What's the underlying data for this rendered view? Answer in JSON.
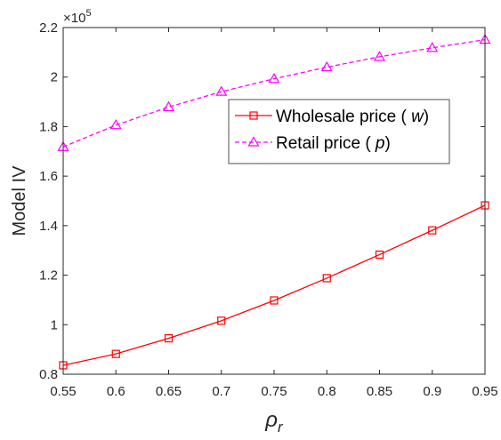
{
  "chart_data": {
    "type": "line",
    "ylabel": "Model IV",
    "xlabel_symbol": "ρ",
    "xlabel_subscript": "r",
    "y_multiplier_base": "×10",
    "y_multiplier_exp": "5",
    "xlim": [
      0.55,
      0.95
    ],
    "ylim": [
      0.8,
      2.2
    ],
    "x_ticks": [
      "0.55",
      "0.6",
      "0.65",
      "0.7",
      "0.75",
      "0.8",
      "0.85",
      "0.9",
      "0.95"
    ],
    "y_ticks": [
      "0.8",
      "1",
      "1.2",
      "1.4",
      "1.6",
      "1.8",
      "2",
      "2.2"
    ],
    "grid": false,
    "legend_position": "top-right",
    "x": [
      0.55,
      0.6,
      0.65,
      0.7,
      0.75,
      0.8,
      0.85,
      0.9,
      0.95
    ],
    "series": [
      {
        "name_prefix": "Wholesale price ( ",
        "name_var": "w",
        "name_suffix": ")",
        "color": "#ff0000",
        "marker": "square",
        "line": "solid",
        "values": [
          0.836,
          0.882,
          0.945,
          1.016,
          1.098,
          1.188,
          1.283,
          1.381,
          1.482
        ]
      },
      {
        "name_prefix": "Retail price ( ",
        "name_var": "p",
        "name_suffix": ")",
        "color": "#ff00ff",
        "marker": "triangle",
        "line": "dashed",
        "values": [
          1.718,
          1.806,
          1.879,
          1.941,
          1.993,
          2.04,
          2.082,
          2.118,
          2.151
        ]
      }
    ]
  }
}
